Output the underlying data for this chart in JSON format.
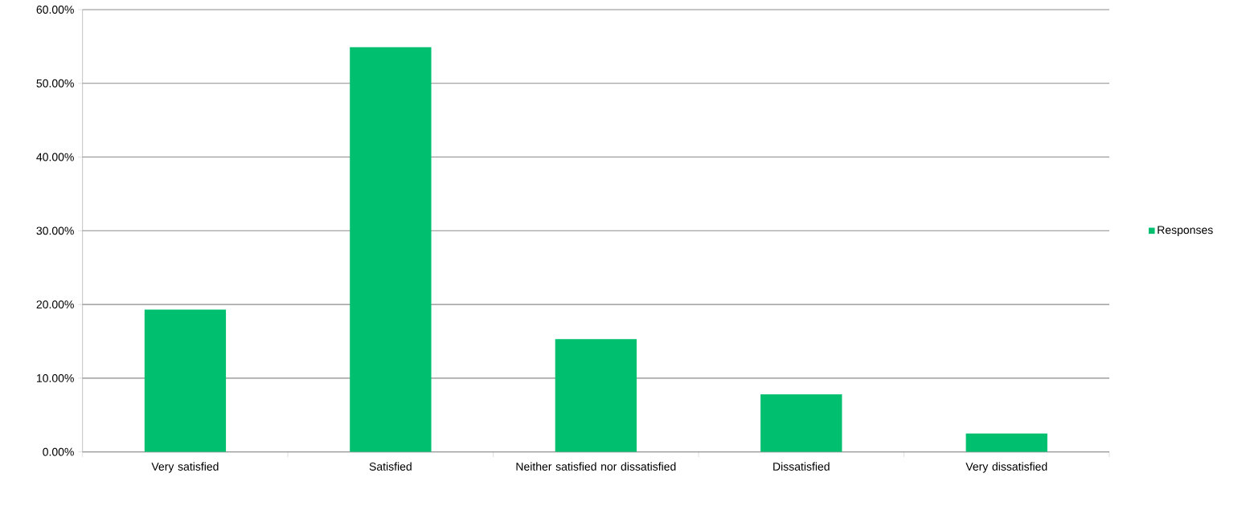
{
  "chart_data": {
    "type": "bar",
    "categories": [
      "Very satisfied",
      "Satisfied",
      "Neither satisfied nor dissatisfied",
      "Dissatisfied",
      "Very dissatisfied"
    ],
    "series": [
      {
        "name": "Responses",
        "color": "#00bf6f",
        "values": [
          19.3,
          54.9,
          15.3,
          7.8,
          2.5
        ]
      }
    ],
    "ylim": [
      0,
      60
    ],
    "yticks": [
      {
        "value": 0,
        "label": "0.00%"
      },
      {
        "value": 10,
        "label": "10.00%"
      },
      {
        "value": 20,
        "label": "20.00%"
      },
      {
        "value": 30,
        "label": "30.00%"
      },
      {
        "value": 40,
        "label": "40.00%"
      },
      {
        "value": 50,
        "label": "50.00%"
      },
      {
        "value": 60,
        "label": "60.00%"
      }
    ],
    "grid": "y",
    "legend": "right"
  }
}
